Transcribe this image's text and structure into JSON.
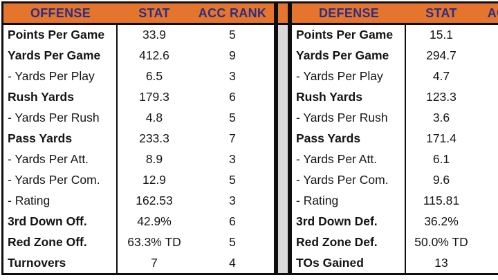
{
  "colors": {
    "header_orange": "#E5752D",
    "header_text_navy": "#2A2E86",
    "divider_gray": "#D9D9D9",
    "border_black": "#0E0E0E"
  },
  "chart_data": [
    {
      "type": "table",
      "title": "OFFENSE",
      "headers": {
        "label": "OFFENSE",
        "stat": "STAT",
        "rank": "ACC RANK"
      },
      "rows": [
        {
          "label": "Points Per Game",
          "stat": "33.9",
          "rank": "5",
          "bold": true
        },
        {
          "label": "Yards Per Game",
          "stat": "412.6",
          "rank": "9",
          "bold": true
        },
        {
          "label": "- Yards Per Play",
          "stat": "6.5",
          "rank": "3",
          "bold": false
        },
        {
          "label": "Rush Yards",
          "stat": "179.3",
          "rank": "6",
          "bold": true
        },
        {
          "label": "- Yards Per Rush",
          "stat": "4.8",
          "rank": "5",
          "bold": false
        },
        {
          "label": "Pass Yards",
          "stat": "233.3",
          "rank": "7",
          "bold": true
        },
        {
          "label": "- Yards Per Att.",
          "stat": "8.9",
          "rank": "3",
          "bold": false
        },
        {
          "label": "- Yards Per Com.",
          "stat": "12.9",
          "rank": "5",
          "bold": false
        },
        {
          "label": "- Rating",
          "stat": "162.53",
          "rank": "3",
          "bold": false
        },
        {
          "label": "3rd Down Off.",
          "stat": "42.9%",
          "rank": "6",
          "bold": true
        },
        {
          "label": "Red Zone Off.",
          "stat": "63.3% TD",
          "rank": "5",
          "bold": true
        },
        {
          "label": "Turnovers",
          "stat": "7",
          "rank": "4",
          "bold": true
        }
      ]
    },
    {
      "type": "table",
      "title": "DEFENSE",
      "headers": {
        "label": "DEFENSE",
        "stat": "STAT",
        "rank": "ACC RANK"
      },
      "rows": [
        {
          "label": "Points Per Game",
          "stat": "15.1",
          "rank": "",
          "bold": true
        },
        {
          "label": "Yards Per Game",
          "stat": "294.7",
          "rank": "",
          "bold": true
        },
        {
          "label": "- Yards Per Play",
          "stat": "4.7",
          "rank": "",
          "bold": false
        },
        {
          "label": "Rush Yards",
          "stat": "123.3",
          "rank": "",
          "bold": true
        },
        {
          "label": "- Yards Per Rush",
          "stat": "3.6",
          "rank": "",
          "bold": false
        },
        {
          "label": "Pass Yards",
          "stat": "171.4",
          "rank": "",
          "bold": true
        },
        {
          "label": "- Yards Per Att.",
          "stat": "6.1",
          "rank": "",
          "bold": false
        },
        {
          "label": "- Yards Per Com.",
          "stat": "9.6",
          "rank": "",
          "bold": false
        },
        {
          "label": "- Rating",
          "stat": "115.81",
          "rank": "",
          "bold": false
        },
        {
          "label": "3rd Down Def.",
          "stat": "36.2%",
          "rank": "",
          "bold": true
        },
        {
          "label": "Red Zone Def.",
          "stat": "50.0% TD",
          "rank": "",
          "bold": true
        },
        {
          "label": "TOs Gained",
          "stat": "13",
          "rank": "",
          "bold": true
        }
      ]
    }
  ]
}
